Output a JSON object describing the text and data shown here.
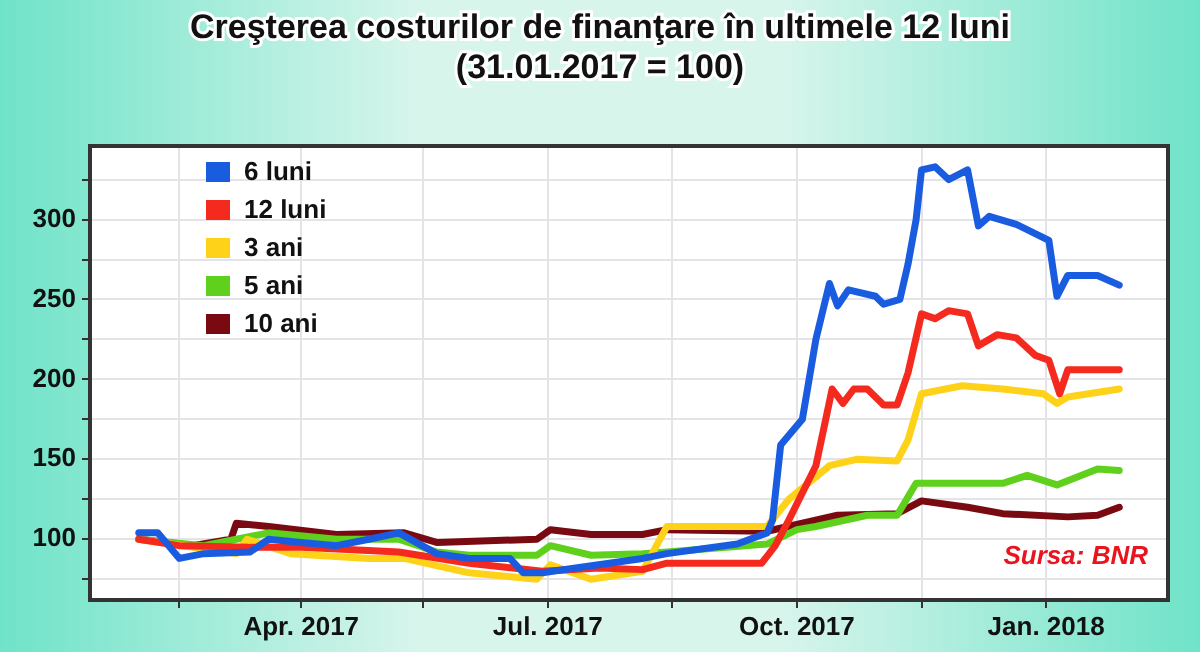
{
  "chart_data": {
    "type": "line",
    "title": "Creşterea costurilor de finanţare în ultimele 12 luni",
    "subtitle": "(31.01.2017 = 100)",
    "annotations": [
      "Sursa: BNR"
    ],
    "xlim": [
      "2017-01-13",
      "2018-02-15"
    ],
    "xticks": [
      {
        "value": "2017-02-15",
        "label": null
      },
      {
        "value": "2017-04-01",
        "label": "Apr. 2017"
      },
      {
        "value": "2017-05-16",
        "label": null
      },
      {
        "value": "2017-07-01",
        "label": "Jul. 2017"
      },
      {
        "value": "2017-08-16",
        "label": null
      },
      {
        "value": "2017-10-01",
        "label": "Oct. 2017"
      },
      {
        "value": "2017-11-16",
        "label": null
      },
      {
        "value": "2018-01-01",
        "label": "Jan. 2018"
      }
    ],
    "ylim": [
      62,
      346
    ],
    "yticks": [
      {
        "value": 75,
        "label": null
      },
      100,
      {
        "value": 125,
        "label": null
      },
      150,
      {
        "value": 175,
        "label": null
      },
      200,
      {
        "value": 225,
        "label": null
      },
      250,
      {
        "value": 275,
        "label": null
      },
      300,
      {
        "value": 325,
        "label": null
      }
    ],
    "grid": true,
    "legend": "top left",
    "marker": "none",
    "line_style": "solid",
    "series": [
      {
        "name": "6 luni",
        "color": "#1a5ce0",
        "x": [
          "2017-01-31",
          "2017-02-07",
          "2017-02-15",
          "2017-02-24",
          "2017-03-13",
          "2017-03-20",
          "2017-04-01",
          "2017-04-14",
          "2017-04-26",
          "2017-05-07",
          "2017-05-21",
          "2017-06-02",
          "2017-06-17",
          "2017-06-22",
          "2017-06-29",
          "2017-08-05",
          "2017-08-14",
          "2017-09-09",
          "2017-09-20",
          "2017-09-22",
          "2017-09-25",
          "2017-10-03",
          "2017-10-08",
          "2017-10-13",
          "2017-10-16",
          "2017-10-20",
          "2017-10-30",
          "2017-11-02",
          "2017-11-08",
          "2017-11-11",
          "2017-11-14",
          "2017-11-16",
          "2017-11-21",
          "2017-11-26",
          "2017-12-03",
          "2017-12-07",
          "2017-12-11",
          "2017-12-21",
          "2018-01-02",
          "2018-01-05",
          "2018-01-09",
          "2018-01-20",
          "2018-01-28"
        ],
        "values": [
          104,
          104,
          88,
          91,
          92,
          100,
          98,
          96,
          100,
          104,
          91,
          88,
          88,
          79,
          79,
          88,
          91,
          97,
          104,
          112,
          159,
          175,
          225,
          260,
          246,
          256,
          252,
          247,
          250,
          272,
          300,
          331,
          333,
          325,
          331,
          296,
          302,
          297,
          287,
          252,
          265,
          265,
          259
        ]
      },
      {
        "name": "12 luni",
        "color": "#f52a1e",
        "x": [
          "2017-01-31",
          "2017-02-15",
          "2017-03-13",
          "2017-04-01",
          "2017-05-07",
          "2017-06-02",
          "2017-06-29",
          "2017-07-20",
          "2017-08-05",
          "2017-08-14",
          "2017-09-18",
          "2017-09-23",
          "2017-09-28",
          "2017-10-08",
          "2017-10-14",
          "2017-10-18",
          "2017-10-22",
          "2017-10-27",
          "2017-11-02",
          "2017-11-07",
          "2017-11-11",
          "2017-11-16",
          "2017-11-21",
          "2017-11-26",
          "2017-12-03",
          "2017-12-07",
          "2017-12-14",
          "2017-12-21",
          "2017-12-28",
          "2018-01-02",
          "2018-01-06",
          "2018-01-09",
          "2018-01-20",
          "2018-01-28"
        ],
        "values": [
          100,
          96,
          95,
          95,
          92,
          85,
          80,
          82,
          81,
          85,
          85,
          96,
          112,
          146,
          194,
          185,
          194,
          194,
          184,
          184,
          204,
          241,
          238,
          243,
          241,
          221,
          228,
          226,
          215,
          212,
          191,
          206,
          206,
          206
        ]
      },
      {
        "name": "3 ani",
        "color": "#ffd21a",
        "x": [
          "2017-01-31",
          "2017-03-08",
          "2017-03-12",
          "2017-03-28",
          "2017-04-26",
          "2017-05-09",
          "2017-06-02",
          "2017-06-27",
          "2017-07-02",
          "2017-07-17",
          "2017-08-05",
          "2017-08-14",
          "2017-09-20",
          "2017-09-28",
          "2017-10-13",
          "2017-10-23",
          "2017-11-07",
          "2017-11-11",
          "2017-11-16",
          "2017-12-01",
          "2017-12-16",
          "2017-12-31",
          "2018-01-05",
          "2018-01-09",
          "2018-01-28"
        ],
        "values": [
          100,
          91,
          100,
          91,
          88,
          88,
          79,
          75,
          84,
          75,
          80,
          108,
          108,
          125,
          146,
          150,
          149,
          162,
          191,
          196,
          194,
          191,
          185,
          189,
          194
        ]
      },
      {
        "name": "5 ani",
        "color": "#5fd11c",
        "x": [
          "2017-01-31",
          "2017-02-24",
          "2017-03-20",
          "2017-04-14",
          "2017-05-07",
          "2017-05-21",
          "2017-06-02",
          "2017-06-27",
          "2017-07-02",
          "2017-07-17",
          "2017-08-05",
          "2017-08-14",
          "2017-09-20",
          "2017-10-01",
          "2017-10-08",
          "2017-10-27",
          "2017-11-07",
          "2017-11-14",
          "2017-11-21",
          "2017-12-16",
          "2017-12-25",
          "2018-01-05",
          "2018-01-20",
          "2018-01-28"
        ],
        "values": [
          100,
          96,
          104,
          100,
          100,
          92,
          90,
          90,
          96,
          90,
          91,
          92,
          97,
          106,
          108,
          115,
          115,
          135,
          135,
          135,
          140,
          134,
          144,
          143
        ]
      },
      {
        "name": "10 ani",
        "color": "#7a0a12",
        "x": [
          "2017-01-31",
          "2017-02-20",
          "2017-03-06",
          "2017-03-08",
          "2017-03-20",
          "2017-04-14",
          "2017-05-09",
          "2017-05-21",
          "2017-06-27",
          "2017-07-02",
          "2017-07-17",
          "2017-08-05",
          "2017-08-14",
          "2017-09-20",
          "2017-10-03",
          "2017-10-16",
          "2017-11-07",
          "2017-11-16",
          "2017-12-03",
          "2017-12-16",
          "2018-01-09",
          "2018-01-20",
          "2018-01-28"
        ],
        "values": [
          100,
          96,
          100,
          110,
          108,
          103,
          104,
          98,
          100,
          106,
          103,
          103,
          106,
          105,
          110,
          115,
          116,
          124,
          120,
          116,
          114,
          115,
          120
        ]
      }
    ]
  }
}
